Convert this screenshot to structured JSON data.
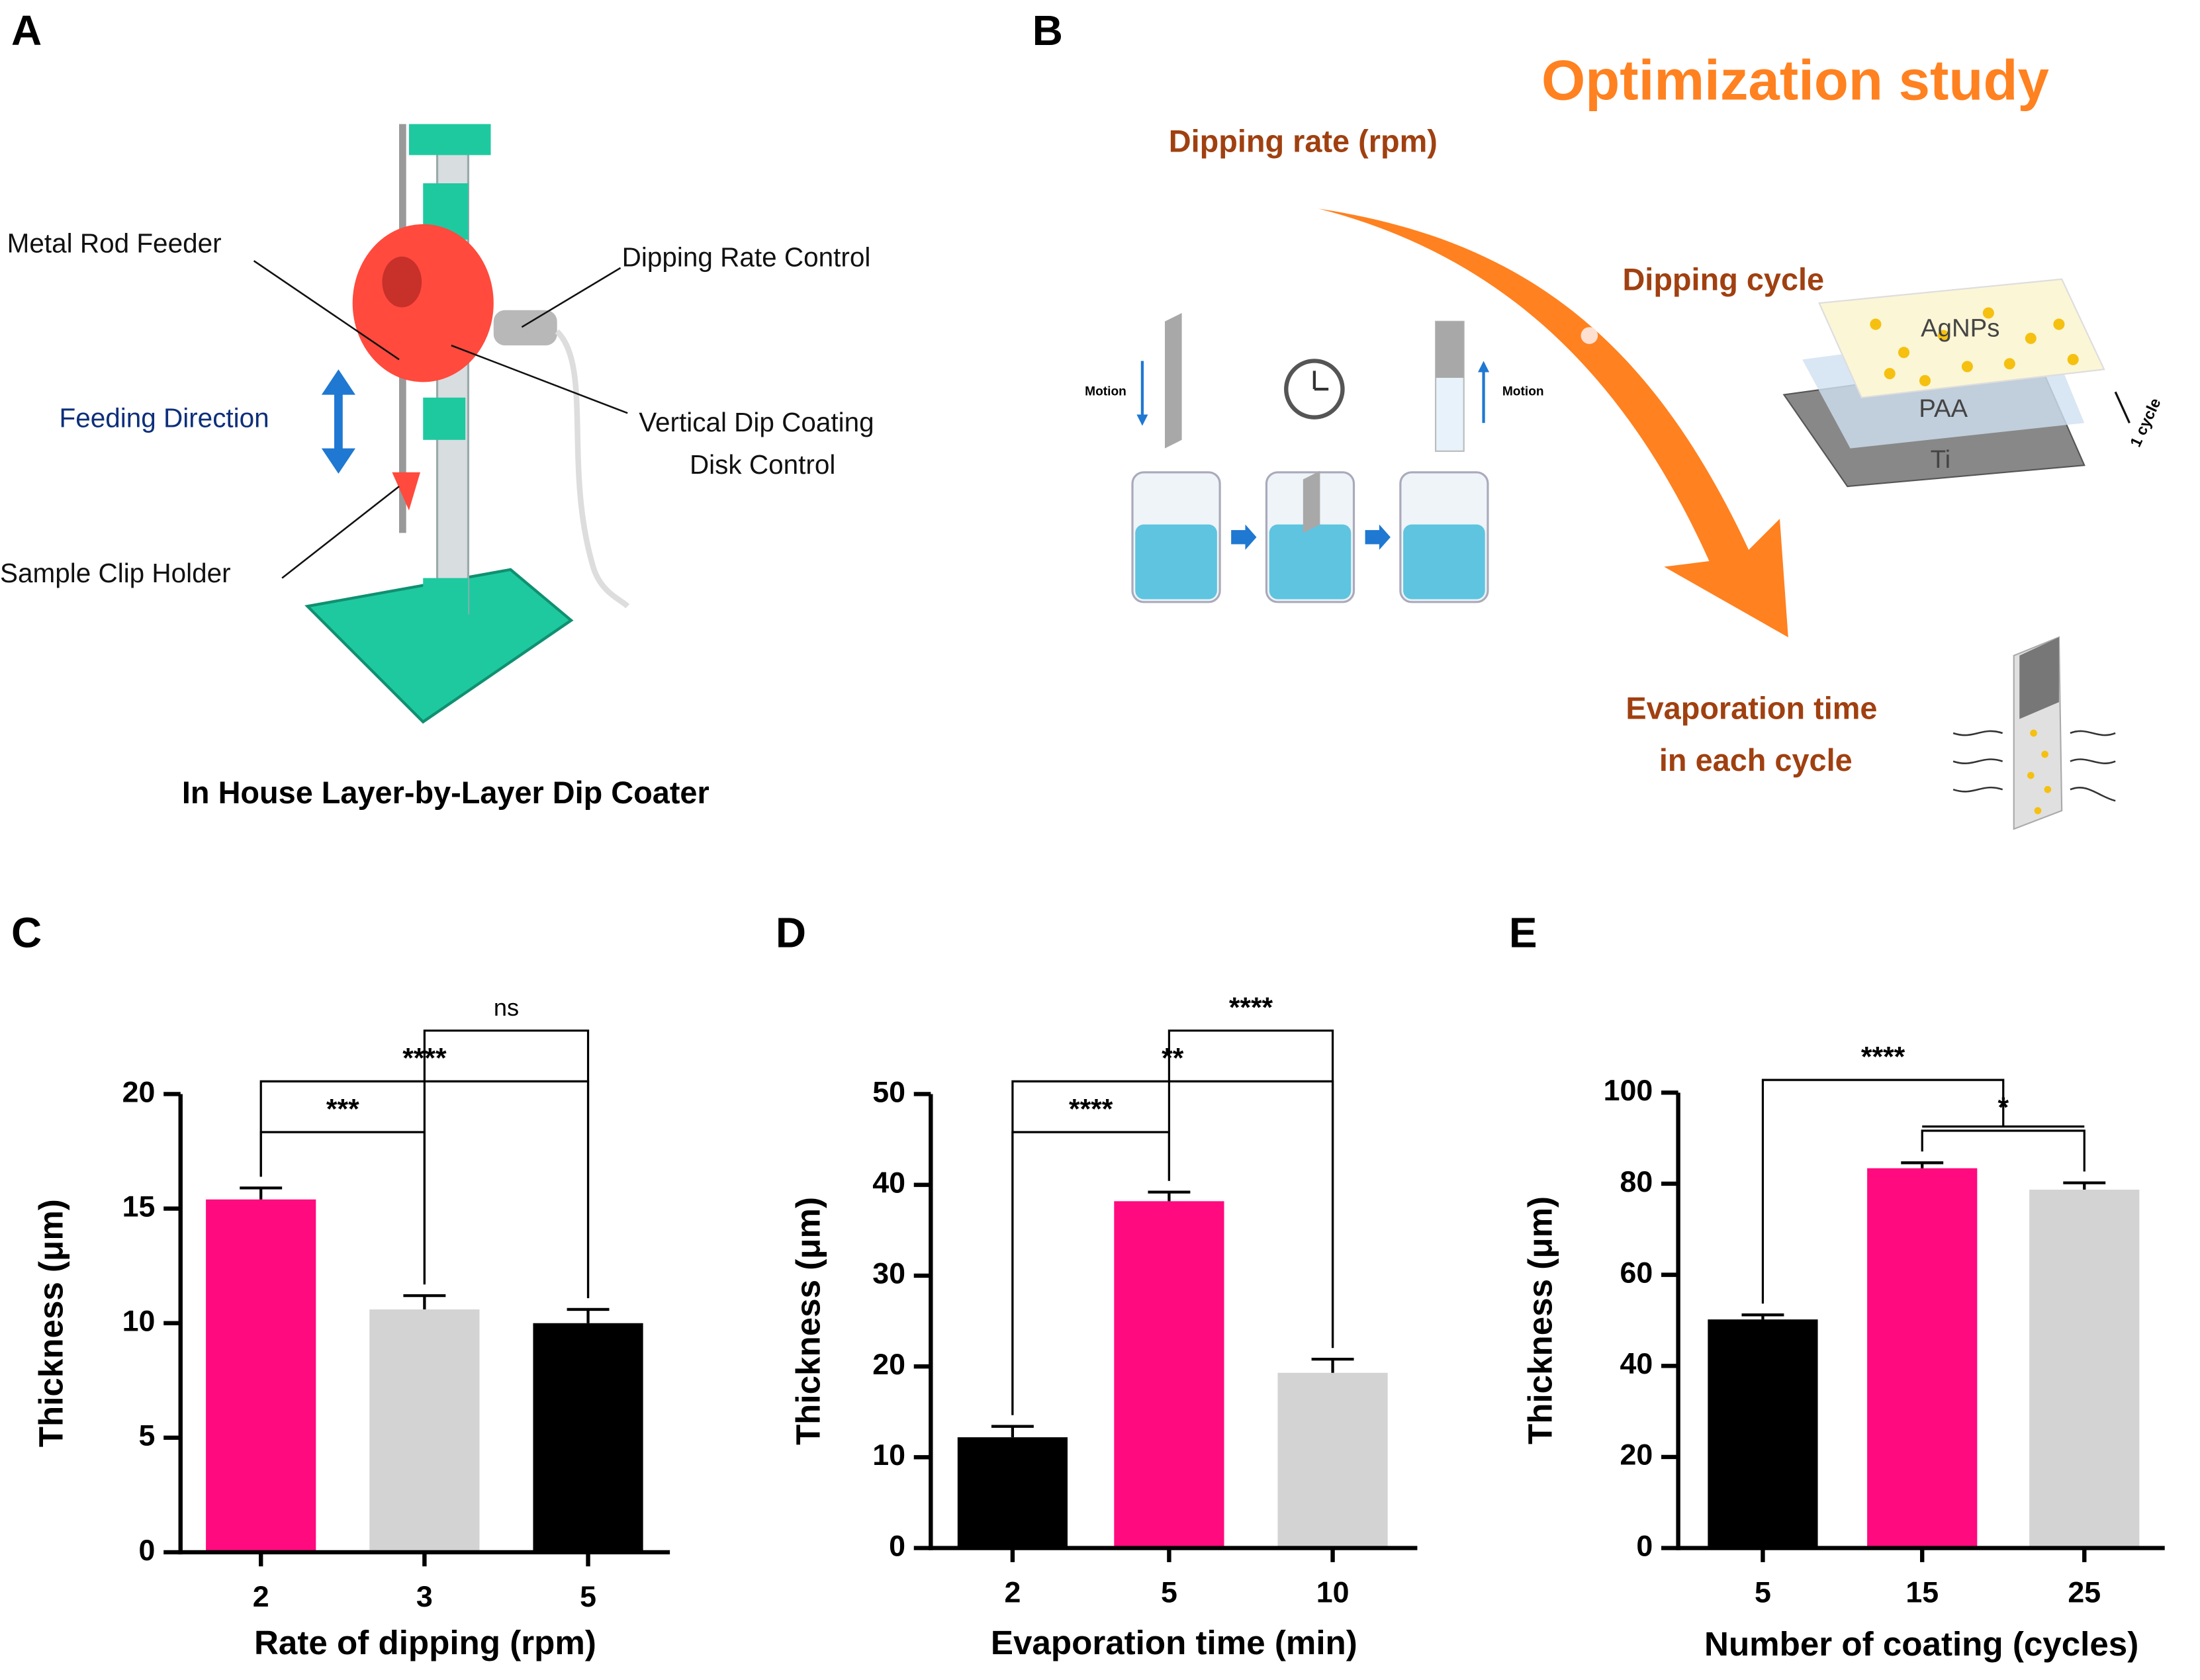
{
  "panel_labels": [
    "A",
    "B",
    "C",
    "D",
    "E"
  ],
  "panel_a": {
    "title": "In House Layer-by-Layer Dip Coater",
    "labels": [
      "Metal Rod Feeder",
      "Dipping Rate Control",
      "Feeding Direction",
      "Vertical Dip Coating",
      "Disk Control",
      "Sample Clip Holder"
    ]
  },
  "panel_b": {
    "title": "Optimization study",
    "dipping_rate": "Dipping rate (rpm)",
    "dipping_cycle": "Dipping cycle",
    "evaporation": [
      "Evaporation time",
      "in each cycle"
    ],
    "motion": [
      "Motion",
      "Motion"
    ],
    "layers": [
      "AgNPs",
      "PAA",
      "Ti"
    ],
    "cycle": "1 cycle"
  },
  "chart_data": [
    {
      "type": "bar",
      "x_label": "Rate of dipping (rpm)",
      "y_label": "Thickness (μm)",
      "categories": [
        "2",
        "3",
        "5"
      ],
      "values": [
        15.4,
        10.6,
        10.0
      ],
      "errors": [
        0.5,
        0.6,
        0.6
      ],
      "colors": [
        "#ff0a7f",
        "#d3d3d3",
        "#000000"
      ],
      "ylim": [
        0,
        20
      ],
      "yticks": [
        0,
        5,
        10,
        15,
        20
      ],
      "annotations": [
        {
          "text": "***",
          "between": [
            [
              "2"
            ],
            [
              "3"
            ]
          ]
        },
        {
          "text": "****",
          "between": [
            [
              "2"
            ],
            [
              "5"
            ]
          ]
        },
        {
          "text": "ns",
          "between": [
            [
              "3"
            ],
            [
              "5"
            ]
          ]
        }
      ]
    },
    {
      "type": "bar",
      "x_label": "Evaporation time (min)",
      "y_label": "Thickness (μm)",
      "categories": [
        "2",
        "5",
        "10"
      ],
      "values": [
        12.2,
        38.2,
        19.3
      ],
      "errors": [
        1.2,
        1.0,
        1.5
      ],
      "colors": [
        "#000000",
        "#ff0a7f",
        "#d3d3d3"
      ],
      "ylim": [
        0,
        50
      ],
      "yticks": [
        0,
        10,
        20,
        30,
        40,
        50
      ],
      "annotations": [
        {
          "text": "****",
          "between": [
            [
              "2"
            ],
            [
              "5"
            ]
          ]
        },
        {
          "text": "**",
          "between": [
            [
              "2"
            ],
            [
              "10"
            ]
          ]
        },
        {
          "text": "****",
          "between": [
            [
              "5"
            ],
            [
              "10"
            ]
          ]
        }
      ]
    },
    {
      "type": "bar",
      "x_label": "Number of coating (cycles)",
      "y_label": "Thickness (μm)",
      "categories": [
        "5",
        "15",
        "25"
      ],
      "values": [
        50.2,
        83.4,
        78.7
      ],
      "errors": [
        1.0,
        1.2,
        1.5
      ],
      "colors": [
        "#000000",
        "#ff0a7f",
        "#d3d3d3"
      ],
      "ylim": [
        0,
        100
      ],
      "yticks": [
        0,
        20,
        40,
        60,
        80,
        100
      ],
      "annotations": [
        {
          "text": "*",
          "between": [
            [
              "15"
            ],
            [
              "25"
            ]
          ]
        },
        {
          "text": "****",
          "between": [
            [
              "5"
            ],
            [
              "15",
              "25"
            ]
          ]
        }
      ]
    }
  ]
}
